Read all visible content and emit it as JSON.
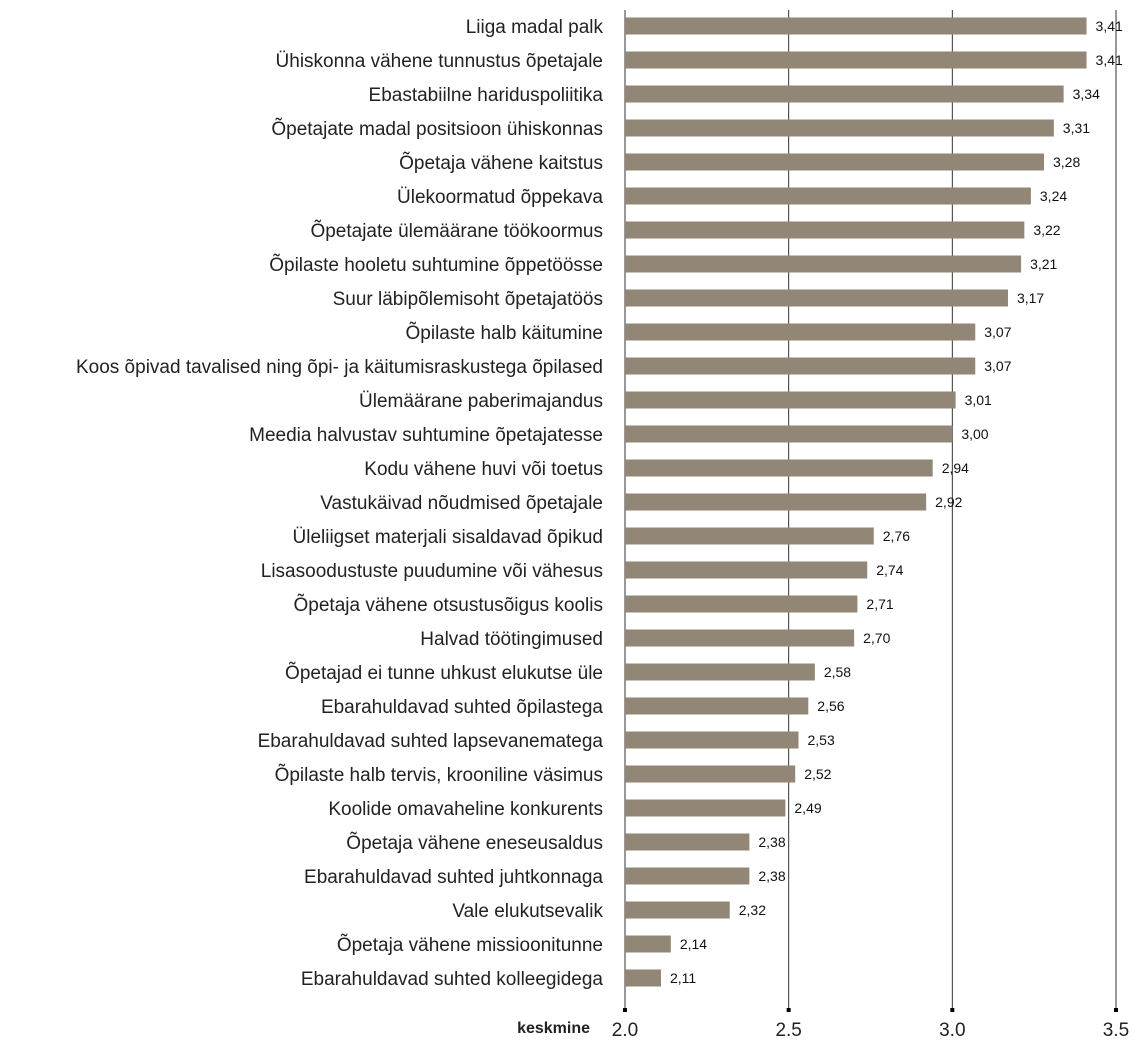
{
  "chart_data": {
    "type": "bar",
    "orientation": "horizontal",
    "categories": [
      "Liiga madal palk",
      "Ühiskonna vähene tunnustus õpetajale",
      "Ebastabiilne hariduspoliitika",
      "Õpetajate madal positsioon ühiskonnas",
      "Õpetaja vähene kaitstus",
      "Ülekoormatud õppekava",
      "Õpetajate ülemäärane töökoormus",
      "Õpilaste hooletu suhtumine õppetöösse",
      "Suur läbipõlemisoht õpetajatöös",
      "Õpilaste halb käitumine",
      "Koos õpivad tavalised ning õpi- ja käitumisraskustega õpilased",
      "Ülemäärane paberimajandus",
      "Meedia halvustav suhtumine õpetajatesse",
      "Kodu vähene huvi või toetus",
      "Vastukäivad nõudmised õpetajale",
      "Üleliigset materjali sisaldavad õpikud",
      "Lisasoodustuste puudumine või vähesus",
      "Õpetaja vähene otsustusõigus koolis",
      "Halvad töötingimused",
      "Õpetajad ei tunne uhkust elukutse üle",
      "Ebarahuldavad suhted õpilastega",
      "Ebarahuldavad suhted lapsevanematega",
      "Õpilaste halb tervis, krooniline väsimus",
      "Koolide omavaheline konkurents",
      "Õpetaja vähene eneseusaldus",
      "Ebarahuldavad suhted juhtkonnaga",
      "Vale elukutsevalik",
      "Õpetaja vähene missioonitunne",
      "Ebarahuldavad suhted kolleegidega"
    ],
    "values": [
      3.41,
      3.41,
      3.34,
      3.31,
      3.28,
      3.24,
      3.22,
      3.21,
      3.17,
      3.07,
      3.07,
      3.01,
      3.0,
      2.94,
      2.92,
      2.76,
      2.74,
      2.71,
      2.7,
      2.58,
      2.56,
      2.53,
      2.52,
      2.49,
      2.38,
      2.38,
      2.32,
      2.14,
      2.11
    ],
    "value_labels": [
      "3,41",
      "3,41",
      "3,34",
      "3,31",
      "3,28",
      "3,24",
      "3,22",
      "3,21",
      "3,17",
      "3,07",
      "3,07",
      "3,01",
      "3,00",
      "2,94",
      "2,92",
      "2,76",
      "2,74",
      "2,71",
      "2,70",
      "2,58",
      "2,56",
      "2,53",
      "2,52",
      "2,49",
      "2,38",
      "2,38",
      "2,32",
      "2,14",
      "2,11"
    ],
    "xlim": [
      2.0,
      3.5
    ],
    "xticks": [
      2.0,
      2.5,
      3.0,
      3.5
    ],
    "xtick_labels": [
      "2.0",
      "2.5",
      "3.0",
      "3.5"
    ],
    "xlabel": "keskmine",
    "ylabel": "",
    "title": "",
    "grid": "vertical gridlines at each tick",
    "legend": "none",
    "colors": {
      "bar": "#928776",
      "grid": "#333333",
      "text": "#222222"
    }
  }
}
